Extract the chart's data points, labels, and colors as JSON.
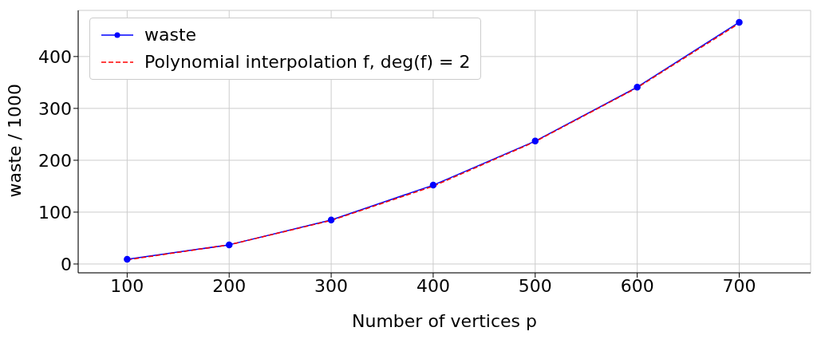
{
  "chart_data": {
    "type": "line",
    "xlabel": "Number of vertices p",
    "ylabel": "waste / 1000",
    "x": [
      100,
      200,
      300,
      400,
      500,
      600,
      700
    ],
    "series": [
      {
        "name": "waste",
        "color": "#0000ff",
        "values": [
          9,
          37,
          85,
          152,
          237,
          341,
          466
        ],
        "marker": "circle",
        "line_style": "solid"
      },
      {
        "name": "Polynomial interpolation f, deg(f) = 2",
        "color": "#ff0000",
        "values": [
          8,
          37,
          84,
          150,
          236,
          340,
          464
        ],
        "marker": "none",
        "line_style": "dashed"
      }
    ],
    "xlim": [
      52,
      770
    ],
    "xticks": [
      100,
      200,
      300,
      400,
      500,
      600,
      700
    ],
    "ylim": [
      -17,
      489
    ],
    "yticks": [
      0,
      100,
      200,
      300,
      400
    ],
    "grid": true,
    "legend": "top left"
  }
}
